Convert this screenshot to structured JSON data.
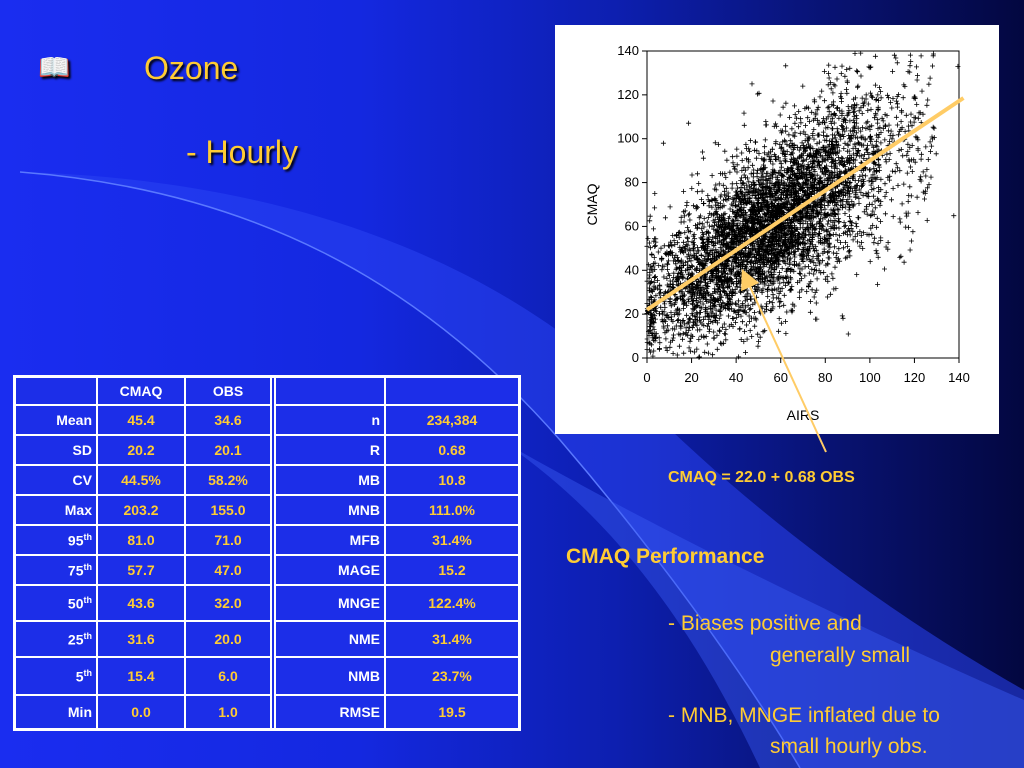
{
  "slide": {
    "bullet_icon": "book-icon",
    "title": "Ozone",
    "subtitle": "-  Hourly",
    "equation": "CMAQ  =  22.0  +  0.68  OBS",
    "performance": {
      "title": "CMAQ  Performance",
      "bullet1_line1": "-  Biases positive and",
      "bullet1_line2": "generally small",
      "bullet2_line1": "-  MNB, MNGE inflated due to",
      "bullet2_line2": "small hourly obs."
    }
  },
  "table": {
    "headers": [
      "CMAQ",
      "OBS"
    ],
    "rows": [
      {
        "label": "Mean",
        "sup": "",
        "cmaq": "45.4",
        "obs": "34.6",
        "metric": "n",
        "value": "234,384"
      },
      {
        "label": "SD",
        "sup": "",
        "cmaq": "20.2",
        "obs": "20.1",
        "metric": "R",
        "value": "0.68"
      },
      {
        "label": "CV",
        "sup": "",
        "cmaq": "44.5%",
        "obs": "58.2%",
        "metric": "MB",
        "value": "10.8"
      },
      {
        "label": "Max",
        "sup": "",
        "cmaq": "203.2",
        "obs": "155.0",
        "metric": "MNB",
        "value": "111.0%"
      },
      {
        "label": "95",
        "sup": "th",
        "cmaq": "81.0",
        "obs": "71.0",
        "metric": "MFB",
        "value": "31.4%"
      },
      {
        "label": "75",
        "sup": "th",
        "cmaq": "57.7",
        "obs": "47.0",
        "metric": "MAGE",
        "value": "15.2"
      },
      {
        "label": "50",
        "sup": "th",
        "cmaq": "43.6",
        "obs": "32.0",
        "metric": "MNGE",
        "value": "122.4%"
      },
      {
        "label": "25",
        "sup": "th",
        "cmaq": "31.6",
        "obs": "20.0",
        "metric": "NME",
        "value": "31.4%"
      },
      {
        "label": "5",
        "sup": "th",
        "cmaq": "15.4",
        "obs": "6.0",
        "metric": "NMB",
        "value": "23.7%"
      },
      {
        "label": "Min",
        "sup": "",
        "cmaq": "0.0",
        "obs": "1.0",
        "metric": "RMSE",
        "value": "19.5"
      }
    ]
  },
  "chart_data": {
    "type": "scatter",
    "xlabel": "AIRS",
    "ylabel": "CMAQ",
    "xlim": [
      0,
      140
    ],
    "ylim": [
      0,
      140
    ],
    "xticks": [
      0,
      20,
      40,
      60,
      80,
      100,
      120,
      140
    ],
    "yticks": [
      0,
      20,
      40,
      60,
      80,
      100,
      120,
      140
    ],
    "marker": "+",
    "regression": {
      "intercept": 22.0,
      "slope": 0.68,
      "color": "#ffcc66"
    },
    "point_cloud_description_samples": [
      [
        0,
        40
      ],
      [
        5,
        55
      ],
      [
        10,
        60
      ],
      [
        20,
        50
      ],
      [
        30,
        55
      ],
      [
        40,
        62
      ],
      [
        50,
        70
      ],
      [
        60,
        75
      ],
      [
        70,
        80
      ],
      [
        80,
        85
      ],
      [
        90,
        90
      ],
      [
        100,
        95
      ],
      [
        110,
        100
      ],
      [
        120,
        100
      ]
    ]
  },
  "colors": {
    "accent": "#ffcc33",
    "background": "#1428e0",
    "table_text": "#ffffff"
  }
}
